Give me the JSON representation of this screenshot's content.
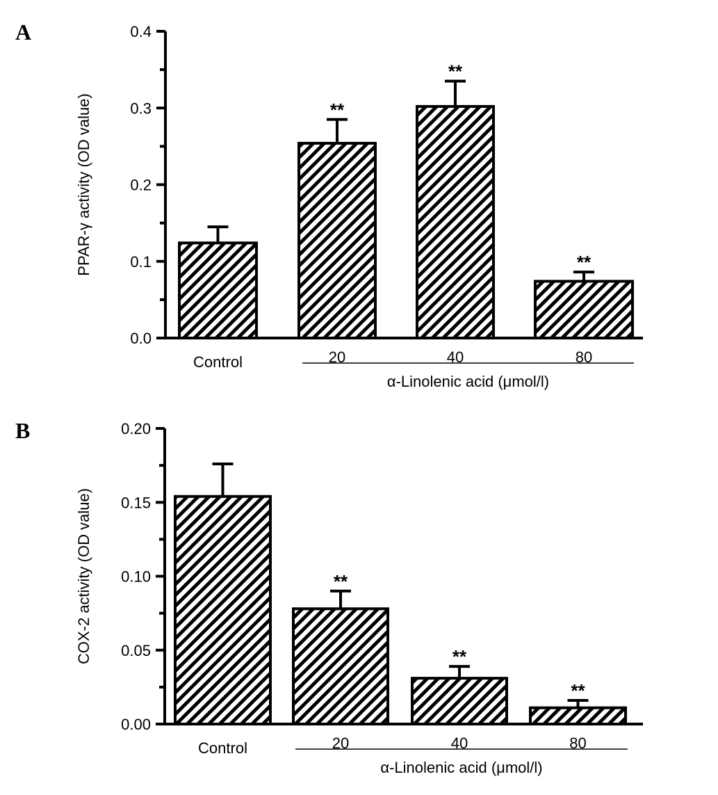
{
  "chart_data": [
    {
      "panel_label": "A",
      "type": "bar",
      "ylabel": "PPAR-γ activity (OD value)",
      "ylim": [
        0,
        0.4
      ],
      "yticks": [
        "0.0",
        "0.1",
        "0.2",
        "0.3",
        "0.4"
      ],
      "categories": [
        "Control",
        "20",
        "40",
        "80"
      ],
      "group_label": "α-Linolenic acid (μmol/l)",
      "values": [
        0.124,
        0.254,
        0.302,
        0.074
      ],
      "errors": [
        0.021,
        0.031,
        0.033,
        0.012
      ],
      "significance": [
        "",
        "**",
        "**",
        "**"
      ],
      "fill": "diagonal hatch",
      "grid": false,
      "color": "#000000"
    },
    {
      "panel_label": "B",
      "type": "bar",
      "ylabel": "COX-2 activity (OD value)",
      "ylim": [
        0,
        0.2
      ],
      "yticks": [
        "0.00",
        "0.05",
        "0.10",
        "0.15",
        "0.20"
      ],
      "categories": [
        "Control",
        "20",
        "40",
        "80"
      ],
      "group_label": "α-Linolenic acid (μmol/l)",
      "values": [
        0.154,
        0.078,
        0.031,
        0.011
      ],
      "errors": [
        0.022,
        0.012,
        0.008,
        0.005
      ],
      "significance": [
        "",
        "**",
        "**",
        "**"
      ],
      "fill": "diagonal hatch",
      "grid": false,
      "color": "#000000"
    }
  ]
}
